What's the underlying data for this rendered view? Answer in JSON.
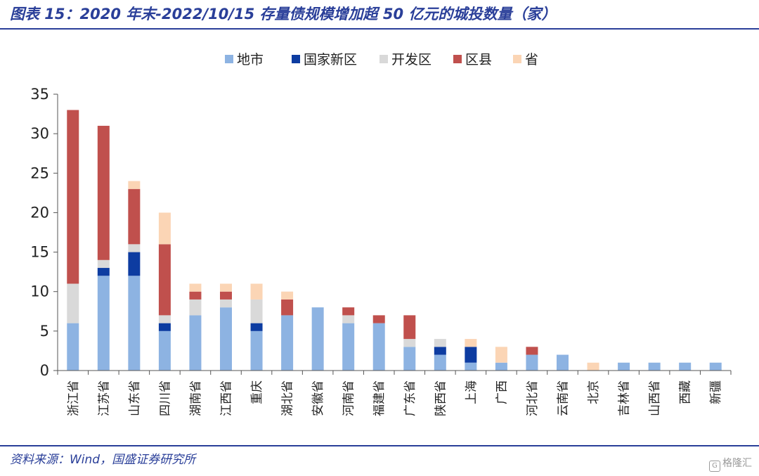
{
  "header": {
    "title": "图表 15：2020 年末-2022/10/15 存量债规模增加超 50 亿元的城投数量（家）"
  },
  "footer": {
    "source": "资料来源：Wind，国盛证券研究所",
    "watermark_badge": "G",
    "watermark": "格隆汇"
  },
  "chart_data": {
    "type": "bar",
    "stacked": true,
    "title": "图表 15：2020 年末-2022/10/15 存量债规模增加超 50 亿元的城投数量（家）",
    "xlabel": "",
    "ylabel": "",
    "ylim": [
      0,
      35
    ],
    "yticks": [
      0,
      5,
      10,
      15,
      20,
      25,
      30,
      35
    ],
    "grid": false,
    "legend_position": "top-center",
    "categories": [
      "浙江省",
      "江苏省",
      "山东省",
      "四川省",
      "湖南省",
      "江西省",
      "重庆",
      "湖北省",
      "安徽省",
      "河南省",
      "福建省",
      "广东省",
      "陕西省",
      "上海",
      "广西",
      "河北省",
      "云南省",
      "北京",
      "吉林省",
      "山西省",
      "西藏",
      "新疆"
    ],
    "series": [
      {
        "name": "地市",
        "color": "#8db3e2",
        "values": [
          6,
          12,
          12,
          5,
          7,
          8,
          5,
          7,
          8,
          6,
          6,
          3,
          2,
          1,
          1,
          2,
          2,
          0,
          1,
          1,
          1,
          1
        ]
      },
      {
        "name": "国家新区",
        "color": "#0d3ca1",
        "values": [
          0,
          1,
          3,
          1,
          0,
          0,
          1,
          0,
          0,
          0,
          0,
          0,
          1,
          2,
          0,
          0,
          0,
          0,
          0,
          0,
          0,
          0
        ]
      },
      {
        "name": "开发区",
        "color": "#d9d9d9",
        "values": [
          5,
          1,
          1,
          1,
          2,
          1,
          3,
          0,
          0,
          1,
          0,
          1,
          1,
          0,
          0,
          0,
          0,
          0,
          0,
          0,
          0,
          0
        ]
      },
      {
        "name": "区县",
        "color": "#c0504d",
        "values": [
          22,
          17,
          7,
          9,
          1,
          1,
          0,
          2,
          0,
          1,
          1,
          3,
          0,
          0,
          0,
          1,
          0,
          0,
          0,
          0,
          0,
          0
        ]
      },
      {
        "name": "省",
        "color": "#fbd5b5",
        "values": [
          0,
          0,
          1,
          4,
          1,
          1,
          2,
          1,
          0,
          0,
          0,
          0,
          0,
          1,
          2,
          0,
          0,
          1,
          0,
          0,
          0,
          0
        ]
      }
    ]
  }
}
